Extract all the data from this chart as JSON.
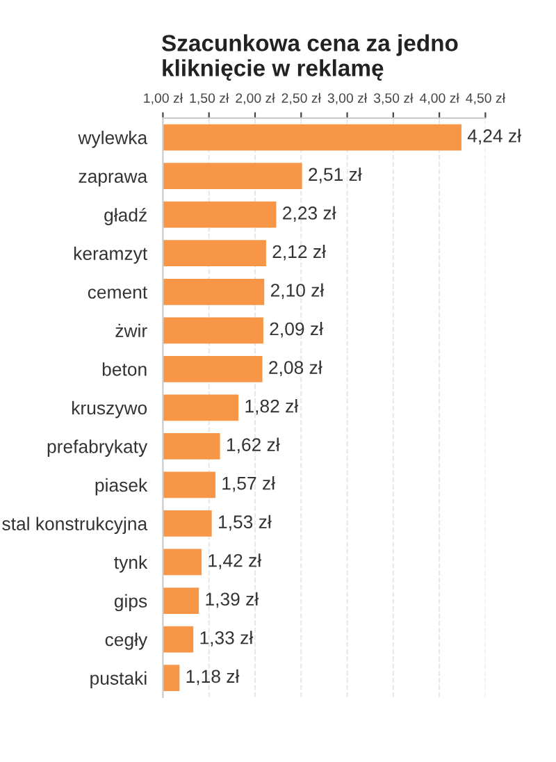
{
  "chart_data": {
    "type": "bar",
    "orientation": "horizontal",
    "title": "Szacunkowa cena za jedno kliknięcie w reklamę",
    "categories": [
      "wylewka",
      "zaprawa",
      "gładź",
      "keramzyt",
      "cement",
      "żwir",
      "beton",
      "kruszywo",
      "prefabrykaty",
      "piasek",
      "stal konstrukcyjna",
      "tynk",
      "gips",
      "cegły",
      "pustaki"
    ],
    "values": [
      4.24,
      2.51,
      2.23,
      2.12,
      2.1,
      2.09,
      2.08,
      1.82,
      1.62,
      1.57,
      1.53,
      1.42,
      1.39,
      1.33,
      1.18
    ],
    "value_labels": [
      "4,24 zł",
      "2,51 zł",
      "2,23 zł",
      "2,12 zł",
      "2,10 zł",
      "2,09 zł",
      "2,08 zł",
      "1,82 zł",
      "1,62 zł",
      "1,57 zł",
      "1,53 zł",
      "1,42 zł",
      "1,39 zł",
      "1,33 zł",
      "1,18 zł"
    ],
    "color": "#f79646",
    "xlim": [
      1.0,
      4.5
    ],
    "xticks": [
      {
        "value": 1.0,
        "label": "1,00 zł"
      },
      {
        "value": 1.5,
        "label": "1,50 zł"
      },
      {
        "value": 2.0,
        "label": "2,00 zł"
      },
      {
        "value": 2.5,
        "label": "2,50 zł"
      },
      {
        "value": 3.0,
        "label": "3,00 zł"
      },
      {
        "value": 3.5,
        "label": "3,50 zł"
      },
      {
        "value": 4.0,
        "label": "4,00 zł"
      },
      {
        "value": 4.5,
        "label": "4,50 zł"
      }
    ],
    "grid": "x"
  }
}
